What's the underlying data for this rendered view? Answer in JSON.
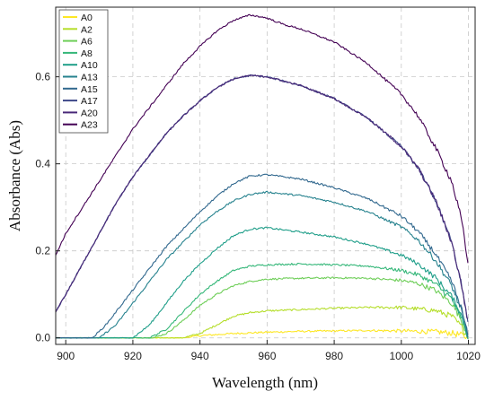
{
  "chart_data": {
    "type": "line",
    "title": "",
    "xlabel": "Wavelength (nm)",
    "ylabel": "Absorbance (Abs)",
    "xlim": [
      897,
      1022
    ],
    "ylim": [
      -0.015,
      0.76
    ],
    "xticks": [
      "900",
      "920",
      "940",
      "960",
      "980",
      "1000",
      "1020"
    ],
    "xtick_values": [
      900,
      920,
      940,
      960,
      980,
      1000,
      1020
    ],
    "yticks": [
      "0.0",
      "0.2",
      "0.4",
      "0.6"
    ],
    "ytick_values": [
      0.0,
      0.2,
      0.4,
      0.6
    ],
    "grid": true,
    "legend_position": "top-left",
    "series": [
      {
        "name": "A0",
        "color": "#fde725",
        "x": [
          897,
          935,
          940,
          950,
          960,
          970,
          980,
          990,
          1000,
          1010,
          1015,
          1018,
          1020
        ],
        "y": [
          0.0,
          0.0,
          0.005,
          0.01,
          0.013,
          0.015,
          0.016,
          0.017,
          0.016,
          0.014,
          0.011,
          0.006,
          0.0
        ]
      },
      {
        "name": "A2",
        "color": "#b5de2b",
        "x": [
          897,
          935,
          940,
          945,
          950,
          955,
          960,
          970,
          980,
          990,
          1000,
          1010,
          1015,
          1018,
          1020
        ],
        "y": [
          0.0,
          0.0,
          0.01,
          0.03,
          0.05,
          0.058,
          0.062,
          0.065,
          0.068,
          0.07,
          0.07,
          0.063,
          0.05,
          0.025,
          0.0
        ]
      },
      {
        "name": "A6",
        "color": "#6ece58",
        "x": [
          897,
          926,
          930,
          935,
          940,
          945,
          950,
          955,
          960,
          970,
          980,
          990,
          1000,
          1005,
          1010,
          1015,
          1018,
          1020
        ],
        "y": [
          0.0,
          0.0,
          0.01,
          0.04,
          0.075,
          0.1,
          0.12,
          0.13,
          0.135,
          0.137,
          0.138,
          0.137,
          0.132,
          0.125,
          0.11,
          0.08,
          0.04,
          0.0
        ]
      },
      {
        "name": "A8",
        "color": "#35b779",
        "x": [
          897,
          925,
          930,
          935,
          940,
          945,
          950,
          955,
          960,
          970,
          980,
          990,
          1000,
          1005,
          1010,
          1015,
          1018,
          1020
        ],
        "y": [
          0.0,
          0.0,
          0.02,
          0.06,
          0.1,
          0.13,
          0.155,
          0.165,
          0.168,
          0.17,
          0.168,
          0.165,
          0.155,
          0.145,
          0.125,
          0.09,
          0.045,
          0.0
        ]
      },
      {
        "name": "A10",
        "color": "#1f9e89",
        "x": [
          897,
          920,
          925,
          930,
          935,
          940,
          945,
          950,
          955,
          960,
          965,
          970,
          980,
          990,
          1000,
          1005,
          1010,
          1015,
          1018,
          1020
        ],
        "y": [
          0.0,
          0.0,
          0.03,
          0.08,
          0.13,
          0.17,
          0.205,
          0.235,
          0.25,
          0.253,
          0.248,
          0.243,
          0.232,
          0.215,
          0.19,
          0.17,
          0.14,
          0.095,
          0.05,
          0.0
        ]
      },
      {
        "name": "A13",
        "color": "#26828e",
        "x": [
          897,
          910,
          915,
          920,
          925,
          930,
          935,
          940,
          945,
          950,
          955,
          960,
          970,
          980,
          990,
          1000,
          1005,
          1010,
          1015,
          1018,
          1020
        ],
        "y": [
          0.0,
          0.0,
          0.03,
          0.08,
          0.13,
          0.18,
          0.22,
          0.26,
          0.29,
          0.315,
          0.33,
          0.335,
          0.327,
          0.312,
          0.29,
          0.255,
          0.225,
          0.18,
          0.12,
          0.06,
          0.0
        ]
      },
      {
        "name": "A15",
        "color": "#31688e",
        "x": [
          897,
          908,
          912,
          916,
          920,
          925,
          930,
          935,
          940,
          945,
          950,
          955,
          960,
          970,
          980,
          990,
          1000,
          1005,
          1010,
          1015,
          1018,
          1020
        ],
        "y": [
          0.0,
          0.0,
          0.03,
          0.07,
          0.11,
          0.16,
          0.21,
          0.25,
          0.29,
          0.325,
          0.355,
          0.372,
          0.375,
          0.365,
          0.345,
          0.32,
          0.28,
          0.245,
          0.195,
          0.13,
          0.065,
          0.0
        ]
      },
      {
        "name": "A17",
        "color": "#3e4989",
        "x": [
          897,
          900,
          905,
          910,
          915,
          920,
          925,
          930,
          935,
          940,
          945,
          950,
          955,
          960,
          970,
          980,
          990,
          1000,
          1005,
          1010,
          1015,
          1018,
          1020
        ],
        "y": [
          0.06,
          0.1,
          0.17,
          0.24,
          0.31,
          0.37,
          0.42,
          0.47,
          0.51,
          0.545,
          0.575,
          0.595,
          0.603,
          0.6,
          0.58,
          0.55,
          0.505,
          0.44,
          0.39,
          0.32,
          0.22,
          0.12,
          0.03
        ]
      },
      {
        "name": "A20",
        "color": "#482878",
        "x": [
          897,
          900,
          905,
          910,
          915,
          920,
          925,
          930,
          935,
          940,
          945,
          950,
          955,
          960,
          970,
          980,
          990,
          1000,
          1005,
          1010,
          1015,
          1018,
          1020
        ],
        "y": [
          0.06,
          0.1,
          0.17,
          0.24,
          0.31,
          0.37,
          0.42,
          0.47,
          0.51,
          0.545,
          0.575,
          0.595,
          0.603,
          0.6,
          0.58,
          0.55,
          0.505,
          0.44,
          0.39,
          0.32,
          0.22,
          0.12,
          0.03
        ]
      },
      {
        "name": "A23",
        "color": "#440154",
        "x": [
          897,
          900,
          905,
          910,
          915,
          920,
          925,
          930,
          935,
          940,
          945,
          950,
          955,
          960,
          965,
          970,
          980,
          990,
          1000,
          1005,
          1010,
          1015,
          1018,
          1020
        ],
        "y": [
          0.19,
          0.24,
          0.3,
          0.36,
          0.42,
          0.48,
          0.53,
          0.58,
          0.63,
          0.67,
          0.705,
          0.73,
          0.742,
          0.735,
          0.72,
          0.71,
          0.68,
          0.63,
          0.56,
          0.51,
          0.44,
          0.36,
          0.27,
          0.16
        ]
      }
    ]
  }
}
